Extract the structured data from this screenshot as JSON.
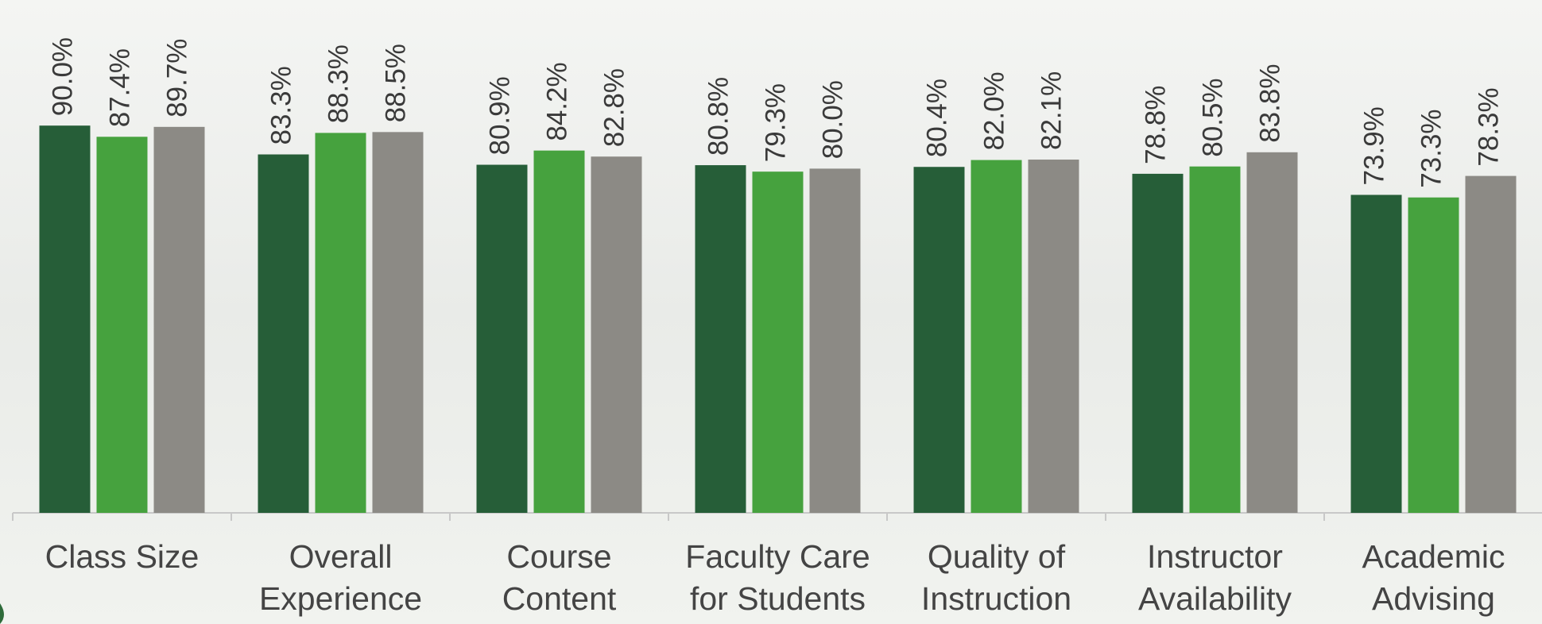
{
  "chart_data": {
    "type": "bar",
    "categories": [
      [
        "Class Size"
      ],
      [
        "Overall",
        "Experience"
      ],
      [
        "Course",
        "Content"
      ],
      [
        "Faculty Care",
        "for Students"
      ],
      [
        "Quality of",
        "Instruction"
      ],
      [
        "Instructor",
        "Availability"
      ],
      [
        "Academic",
        "Advising"
      ]
    ],
    "series": [
      {
        "color": "#265e38",
        "values": [
          90.0,
          83.3,
          80.9,
          80.8,
          80.4,
          78.8,
          73.9
        ],
        "value_labels": [
          "90.0%",
          "83.3%",
          "80.9%",
          "80.8%",
          "80.4%",
          "78.8%",
          "73.9%"
        ]
      },
      {
        "color": "#46a23e",
        "values": [
          87.4,
          88.3,
          84.2,
          79.3,
          82.0,
          80.5,
          73.3
        ],
        "value_labels": [
          "87.4%",
          "88.3%",
          "84.2%",
          "79.3%",
          "82.0%",
          "80.5%",
          "73.3%"
        ]
      },
      {
        "color": "#8c8a85",
        "values": [
          89.7,
          88.5,
          82.8,
          80.0,
          82.1,
          83.8,
          78.3
        ],
        "value_labels": [
          "89.7%",
          "88.5%",
          "82.8%",
          "80.0%",
          "82.1%",
          "83.8%",
          "78.3%"
        ]
      }
    ]
  }
}
